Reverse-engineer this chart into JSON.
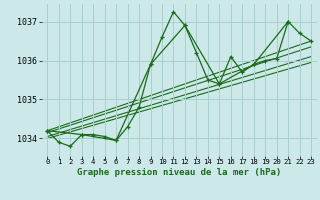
{
  "xlabel": "Graphe pression niveau de la mer (hPa)",
  "background_color": "#cce8e8",
  "grid_color": "#aacfcf",
  "line_color": "#1a6b1a",
  "x_tick_labels": [
    "0",
    "1",
    "2",
    "3",
    "4",
    "5",
    "6",
    "7",
    "8",
    "9",
    "10",
    "11",
    "12",
    "13",
    "14",
    "15",
    "16",
    "17",
    "18",
    "19",
    "20",
    "21",
    "22",
    "23"
  ],
  "ylim": [
    1033.55,
    1037.45
  ],
  "xlim": [
    -0.5,
    23.5
  ],
  "yticks": [
    1034,
    1035,
    1036,
    1037
  ],
  "series_main": {
    "x": [
      0,
      1,
      2,
      3,
      4,
      5,
      6,
      7,
      8,
      9,
      10,
      11,
      12,
      13,
      14,
      15,
      16,
      17,
      18,
      19,
      20,
      21,
      22,
      23
    ],
    "y": [
      1034.2,
      1033.9,
      1033.8,
      1034.1,
      1034.1,
      1034.05,
      1033.95,
      1034.3,
      1034.8,
      1035.9,
      1036.6,
      1037.25,
      1036.9,
      1036.2,
      1035.5,
      1035.4,
      1036.1,
      1035.7,
      1035.9,
      1036.0,
      1036.05,
      1037.0,
      1036.7,
      1036.5
    ]
  },
  "series_synop": {
    "x": [
      0,
      3,
      6,
      9,
      12,
      15,
      18,
      21
    ],
    "y": [
      1034.2,
      1034.1,
      1033.95,
      1035.9,
      1036.9,
      1035.4,
      1035.9,
      1037.0
    ]
  },
  "trend_lines": [
    {
      "x": [
        0,
        23
      ],
      "y": [
        1034.2,
        1036.5
      ]
    },
    {
      "x": [
        0,
        23
      ],
      "y": [
        1034.15,
        1036.35
      ]
    },
    {
      "x": [
        0,
        23
      ],
      "y": [
        1034.05,
        1036.1
      ]
    },
    {
      "x": [
        0,
        23
      ],
      "y": [
        1034.0,
        1035.95
      ]
    }
  ]
}
